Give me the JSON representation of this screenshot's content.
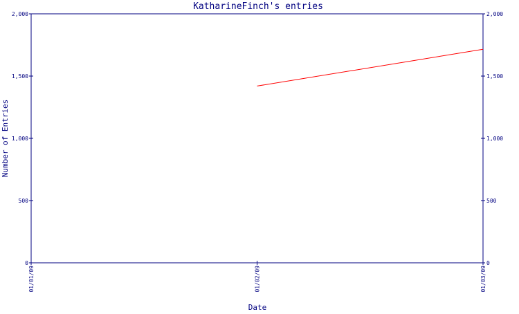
{
  "chart_data": {
    "type": "line",
    "title": "KatharineFinch's entries",
    "xlabel": "Date",
    "ylabel": "Number of Entries",
    "x_categories": [
      "01/01/09",
      "01/02/09",
      "01/03/09"
    ],
    "ylim": [
      0,
      2000
    ],
    "y_ticks": [
      0,
      500,
      1000,
      1500,
      2000
    ],
    "y_tick_labels": [
      "0",
      "500",
      "1,000",
      "1,500",
      "2,000"
    ],
    "grid": false,
    "legend": "none",
    "series": [
      {
        "color": "#ff0000",
        "points": [
          {
            "x": "01/02/09",
            "y": 1420
          },
          {
            "x": "01/03/09",
            "y": 1715
          }
        ]
      }
    ],
    "colors": {
      "axis": "#000080",
      "line": "#ff0000",
      "background": "#ffffff"
    }
  }
}
